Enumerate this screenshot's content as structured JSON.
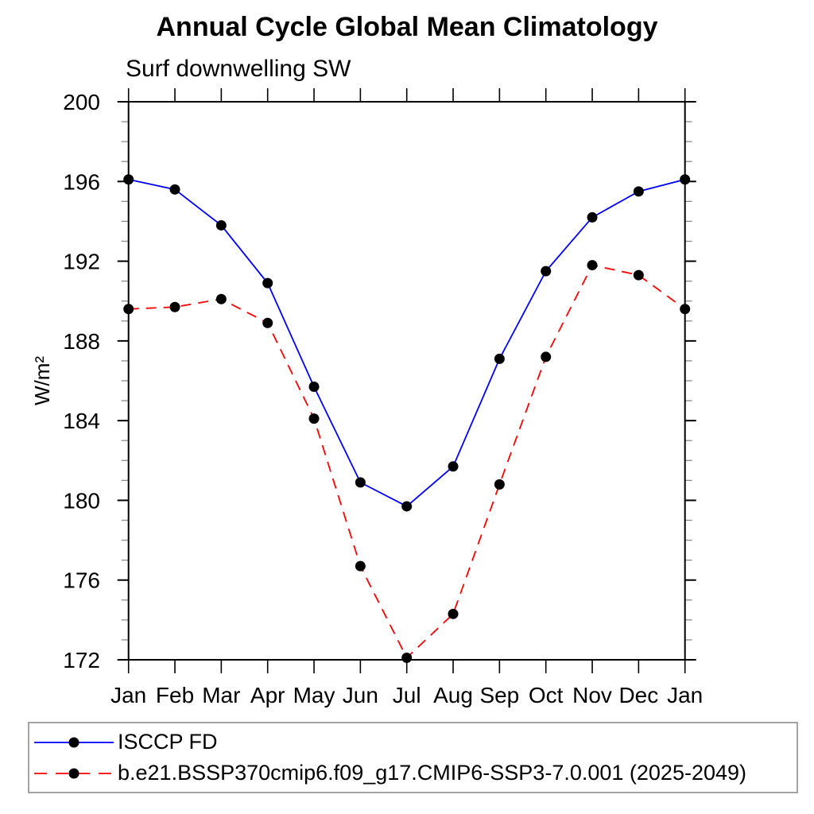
{
  "chart_data": {
    "type": "line",
    "title": "Annual Cycle Global Mean Climatology",
    "subtitle": "Surf downwelling SW",
    "xlabel": "",
    "ylabel": "W/m²",
    "x_categories": [
      "Jan",
      "Feb",
      "Mar",
      "Apr",
      "May",
      "Jun",
      "Jul",
      "Aug",
      "Sep",
      "Oct",
      "Nov",
      "Dec",
      "Jan"
    ],
    "ylim": [
      172,
      200
    ],
    "yticks": [
      172,
      176,
      180,
      184,
      188,
      192,
      196,
      200
    ],
    "ytick_minor_step": 1,
    "grid": false,
    "legend_position": "bottom",
    "marker_color": "#000000",
    "axis_color": "#000000",
    "minor_tick_color": "#8c8c8c",
    "series": [
      {
        "name": "ISCCP FD",
        "color": "#0000ff",
        "style": "solid",
        "marker": "filled-circle",
        "values": [
          196.1,
          195.6,
          193.8,
          190.9,
          185.7,
          180.9,
          179.7,
          181.7,
          187.1,
          191.5,
          194.2,
          195.5,
          196.1
        ]
      },
      {
        "name": "b.e21.BSSP370cmip6.f09_g17.CMIP6-SSP3-7.0.001 (2025-2049)",
        "color": "#ff0000",
        "style": "dashed",
        "marker": "filled-circle",
        "values": [
          189.6,
          189.7,
          190.1,
          188.9,
          184.1,
          176.7,
          172.1,
          174.3,
          180.8,
          187.2,
          191.8,
          191.3,
          189.6
        ]
      }
    ]
  }
}
